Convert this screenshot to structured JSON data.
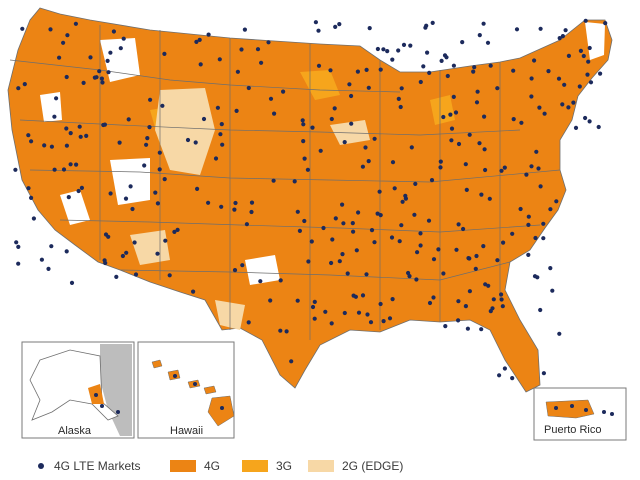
{
  "colors": {
    "lte4g": "#ec8414",
    "g3": "#f6a51c",
    "edge2g": "#f7d8a6",
    "background": "#ffffff",
    "no_coverage": "#ffffff",
    "borders": "#6e6e6e",
    "market_dot": "#1c2a5c",
    "canada_gray": "#bdbdbd"
  },
  "insets": {
    "alaska": "Alaska",
    "hawaii": "Hawaii",
    "puerto_rico": "Puerto Rico"
  },
  "legend": [
    {
      "key": "markets",
      "label": "4G LTE Markets",
      "kind": "dot",
      "color": "#1c2a5c"
    },
    {
      "key": "lte4g",
      "label": "4G",
      "kind": "swatch",
      "color": "#ec8414"
    },
    {
      "key": "g3",
      "label": "3G",
      "kind": "swatch",
      "color": "#f6a51c"
    },
    {
      "key": "edge2g",
      "label": "2G (EDGE)",
      "kind": "swatch",
      "color": "#f7d8a6"
    }
  ]
}
